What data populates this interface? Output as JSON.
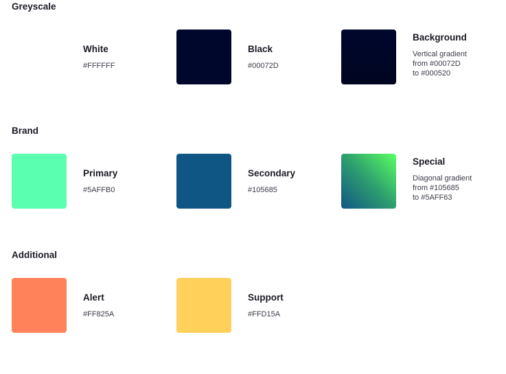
{
  "sections": [
    {
      "title": "Greyscale",
      "swatches": [
        {
          "name": "White",
          "desc": "#FFFFFF",
          "color": "#FFFFFF",
          "layout": "simple",
          "gradient": null
        },
        {
          "name": "Black",
          "desc": "#00072D",
          "color": "#00072D",
          "layout": "simple",
          "gradient": null
        },
        {
          "name": "Background",
          "desc": "Vertical gradient\nfrom #00072D\nto #000520",
          "color": "#00072D",
          "layout": "multi",
          "gradient": "linear-gradient(to bottom, #00072D, #000520)"
        }
      ]
    },
    {
      "title": "Brand",
      "swatches": [
        {
          "name": "Primary",
          "desc": "#5AFFB0",
          "color": "#5AFFB0",
          "layout": "simple",
          "gradient": null
        },
        {
          "name": "Secondary",
          "desc": "#105685",
          "color": "#105685",
          "layout": "simple",
          "gradient": null
        },
        {
          "name": "Special",
          "desc": "Diagonal gradient\nfrom #105685\nto #5AFF63",
          "color": "#5AFF63",
          "layout": "multi",
          "gradient": "linear-gradient(to top right, #105685, #2E9E6E 50%, #5AFF63)"
        }
      ]
    },
    {
      "title": "Additional",
      "swatches": [
        {
          "name": "Alert",
          "desc": "#FF825A",
          "color": "#FF825A",
          "layout": "simple",
          "gradient": null
        },
        {
          "name": "Support",
          "desc": "#FFD15A",
          "color": "#FFD15A",
          "layout": "simple",
          "gradient": null
        }
      ]
    }
  ]
}
